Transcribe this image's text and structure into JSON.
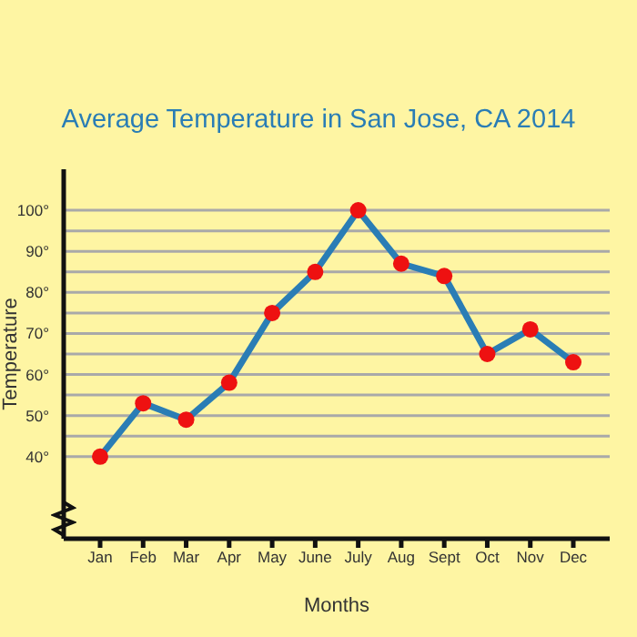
{
  "chart_data": {
    "type": "line",
    "title": "Average Temperature in San Jose, CA 2014",
    "xlabel": "Months",
    "ylabel": "Temperature",
    "categories": [
      "Jan",
      "Feb",
      "Mar",
      "Apr",
      "May",
      "June",
      "July",
      "Aug",
      "Sept",
      "Oct",
      "Nov",
      "Dec"
    ],
    "series": [
      {
        "color": "#2a7db5",
        "values": [
          40,
          53,
          49,
          58,
          75,
          85,
          100,
          87,
          84,
          65,
          71,
          63
        ]
      }
    ],
    "marker": "circle",
    "ylim": [
      20,
      110
    ],
    "yticks": [
      {
        "value": 40,
        "label": "40°"
      },
      {
        "value": 45,
        "label": null
      },
      {
        "value": 50,
        "label": "50°"
      },
      {
        "value": 55,
        "label": null
      },
      {
        "value": 60,
        "label": "60°"
      },
      {
        "value": 65,
        "label": null
      },
      {
        "value": 70,
        "label": "70°"
      },
      {
        "value": 75,
        "label": null
      },
      {
        "value": 80,
        "label": "80°"
      },
      {
        "value": 85,
        "label": null
      },
      {
        "value": 90,
        "label": "90°"
      },
      {
        "value": 95,
        "label": null
      },
      {
        "value": 100,
        "label": "100°"
      }
    ],
    "grid": "y"
  }
}
